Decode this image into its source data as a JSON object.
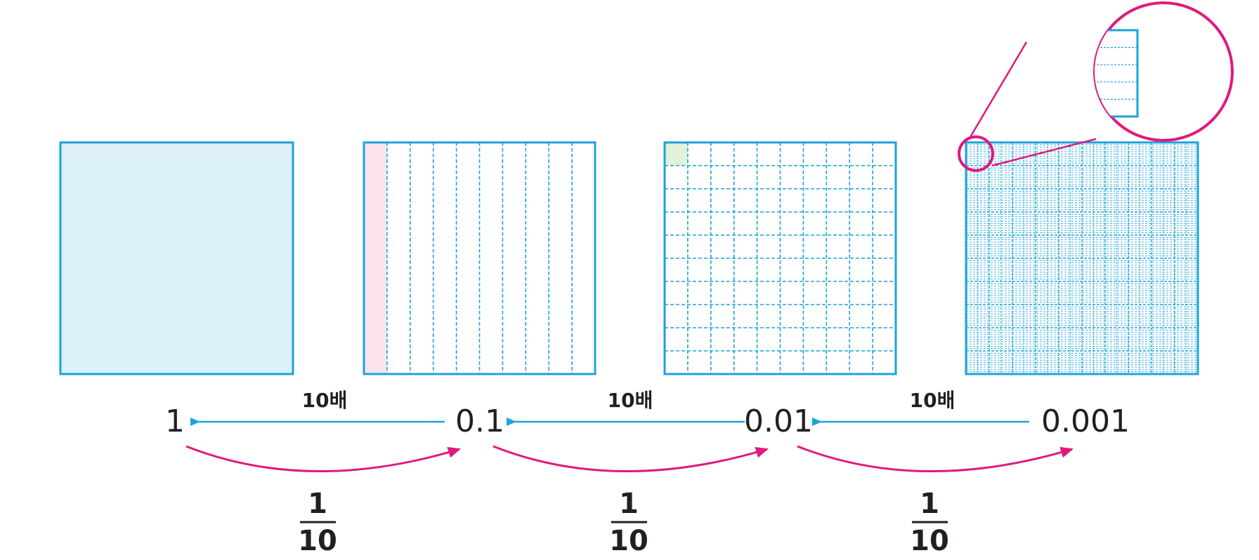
{
  "colors": {
    "grid_stroke": "#1ba3db",
    "whole_fill": "#ddf1fb",
    "tenth_highlight": "#fbe4ec",
    "hundredth_highlight": "#e3f1d9",
    "thousandth_highlight": "#fcd27a",
    "arrow_blue": "#1aa3dd",
    "arrow_magenta": "#e0197d",
    "text": "#231f20"
  },
  "squares": [
    {
      "value": "1",
      "divisions": "none"
    },
    {
      "value": "0.1",
      "divisions": "10 columns",
      "highlighted": "1 column"
    },
    {
      "value": "0.01",
      "divisions": "10 x 10",
      "highlighted": "1 cell"
    },
    {
      "value": "0.001",
      "divisions": "10 x 10 x 10",
      "highlighted": "1 cell (magnified)"
    }
  ],
  "numbers": [
    "1",
    "0.1",
    "0.01",
    "0.001"
  ],
  "times_label": "10배",
  "fraction": {
    "numerator": "1",
    "denominator": "10"
  }
}
